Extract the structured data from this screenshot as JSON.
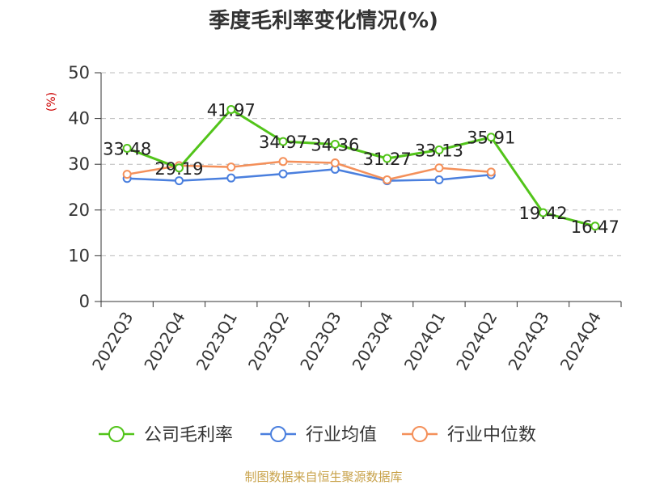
{
  "chart_data": {
    "type": "line",
    "title": "季度毛利率变化情况(%)",
    "ylabel": "(%)",
    "xlabel": "",
    "categories": [
      "2022Q3",
      "2022Q4",
      "2023Q1",
      "2023Q2",
      "2023Q3",
      "2023Q4",
      "2024Q1",
      "2024Q2",
      "2024Q3",
      "2024Q4"
    ],
    "ylim": [
      0,
      50
    ],
    "yticks": [
      0,
      10,
      20,
      30,
      40,
      50
    ],
    "grid": true,
    "legend_position": "bottom",
    "series": [
      {
        "name": "公司毛利率",
        "color": "#52c41a",
        "values": [
          33.48,
          29.19,
          41.97,
          34.97,
          34.36,
          31.27,
          33.13,
          35.91,
          19.42,
          16.47
        ],
        "labels": [
          "33.48",
          "29.19",
          "41.97",
          "34.97",
          "34.36",
          "31.27",
          "33.13",
          "35.91",
          "19.42",
          "16.47"
        ]
      },
      {
        "name": "行业均值",
        "color": "#4a7fde",
        "values": [
          26.9,
          26.4,
          27.0,
          27.9,
          28.9,
          26.4,
          26.6,
          27.7,
          null,
          null
        ]
      },
      {
        "name": "行业中位数",
        "color": "#f4905a",
        "values": [
          27.8,
          29.7,
          29.4,
          30.6,
          30.3,
          26.6,
          29.2,
          28.3,
          null,
          null
        ]
      }
    ]
  },
  "footer": {
    "source": "制图数据来自恒生聚源数据库"
  }
}
